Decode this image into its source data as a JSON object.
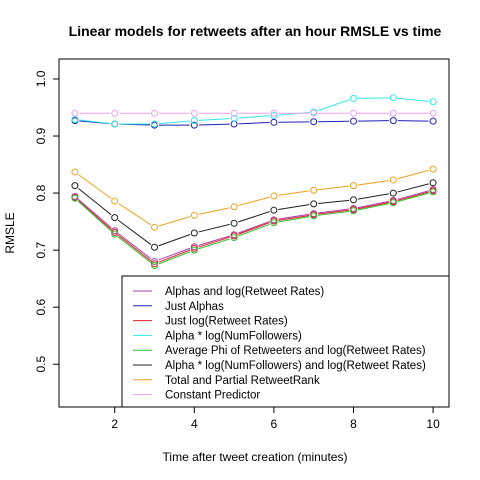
{
  "chart_data": {
    "type": "line",
    "title": "Linear models for retweets after an hour RMSLE vs time",
    "xlabel": "Time after tweet creation (minutes)",
    "ylabel": "RMSLE",
    "xlim": [
      0.6,
      10.4
    ],
    "ylim": [
      0.425,
      1.035
    ],
    "xticks": [
      2,
      4,
      6,
      8,
      10
    ],
    "yticks": [
      0.5,
      0.6,
      0.7,
      0.8,
      0.9,
      1.0
    ],
    "xtick_labels": [
      "2",
      "4",
      "6",
      "8",
      "10"
    ],
    "ytick_labels": [
      "0.5",
      "0.6",
      "0.7",
      "0.8",
      "0.9",
      "1.0"
    ],
    "legend_position": "bottom-right",
    "x": [
      1,
      2,
      3,
      4,
      5,
      6,
      7,
      8,
      9,
      10
    ],
    "series": [
      {
        "name": "Alphas and log(Retweet Rates)",
        "color": "#b03ab0",
        "values": [
          0.794,
          0.734,
          0.68,
          0.706,
          0.727,
          0.753,
          0.764,
          0.773,
          0.787,
          0.806
        ]
      },
      {
        "name": "Just Alphas",
        "color": "#2020b8",
        "values": [
          0.927,
          0.921,
          0.919,
          0.919,
          0.921,
          0.924,
          0.925,
          0.926,
          0.927,
          0.926
        ]
      },
      {
        "name": "Just log(Retweet Rates)",
        "color": "#e02020",
        "values": [
          0.792,
          0.731,
          0.676,
          0.703,
          0.725,
          0.751,
          0.762,
          0.771,
          0.785,
          0.804
        ]
      },
      {
        "name": "Alpha * log(NumFollowers)",
        "color": "#30e8e8",
        "values": [
          0.929,
          0.921,
          0.921,
          0.927,
          0.931,
          0.936,
          0.942,
          0.966,
          0.967,
          0.96
        ]
      },
      {
        "name": "Average Phi of Retweeters and log(Retweet Rates)",
        "color": "#30c030",
        "values": [
          0.791,
          0.728,
          0.673,
          0.7,
          0.722,
          0.748,
          0.76,
          0.769,
          0.783,
          0.802
        ]
      },
      {
        "name": "Alpha * log(NumFollowers) and log(Retweet Rates)",
        "color": "#202020",
        "values": [
          0.813,
          0.757,
          0.705,
          0.73,
          0.747,
          0.77,
          0.781,
          0.788,
          0.8,
          0.818
        ]
      },
      {
        "name": "Total and Partial RetweetRank",
        "color": "#f0a020",
        "values": [
          0.837,
          0.786,
          0.74,
          0.761,
          0.776,
          0.795,
          0.805,
          0.813,
          0.823,
          0.842
        ]
      },
      {
        "name": "Constant Predictor",
        "color": "#f0a0f0",
        "values": [
          0.94,
          0.94,
          0.94,
          0.94,
          0.94,
          0.94,
          0.94,
          0.94,
          0.94,
          0.94
        ]
      }
    ]
  }
}
